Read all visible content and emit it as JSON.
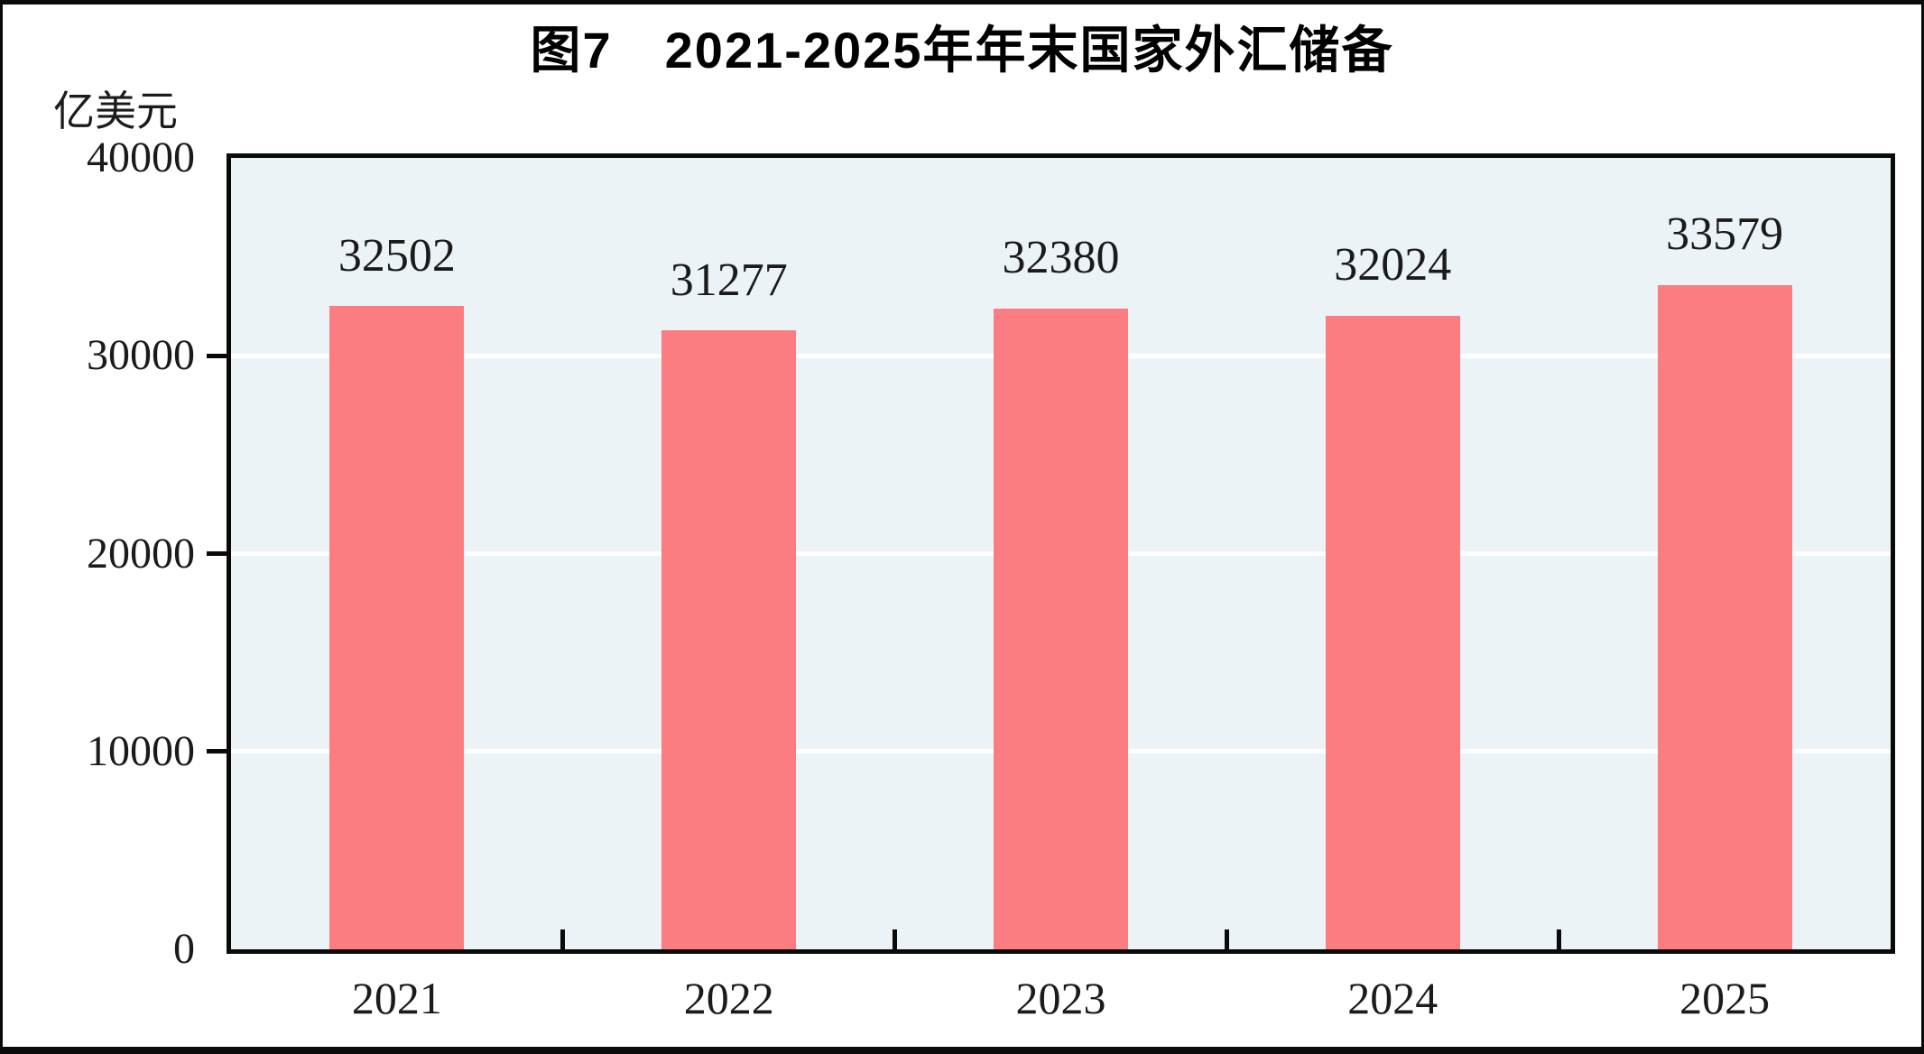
{
  "figure": {
    "title": "图7　2021-2025年年末国家外汇储备",
    "unit_label": "亿美元"
  },
  "chart_data": {
    "type": "bar",
    "title": "图7　2021-2025年年末国家外汇储备",
    "unit": "亿美元",
    "xlabel": "",
    "ylabel": "亿美元",
    "categories": [
      "2021",
      "2022",
      "2023",
      "2024",
      "2025"
    ],
    "values": [
      32502,
      31277,
      32380,
      32024,
      33579
    ],
    "ylim": [
      0,
      40000
    ],
    "yticks": [
      0,
      10000,
      20000,
      30000,
      40000
    ],
    "ytick_marks_visible": [
      10000,
      20000,
      30000
    ],
    "grid": "horizontal",
    "legend": "none",
    "colors": {
      "bar": "#FB7D81",
      "plot_background": "#ECF3F6",
      "gridline": "#FFFFFF",
      "axis_frame": "#0A0A0A",
      "text": "#1B1B1B",
      "title_text": "#000000",
      "outer_background": "#FFFFFF"
    }
  }
}
